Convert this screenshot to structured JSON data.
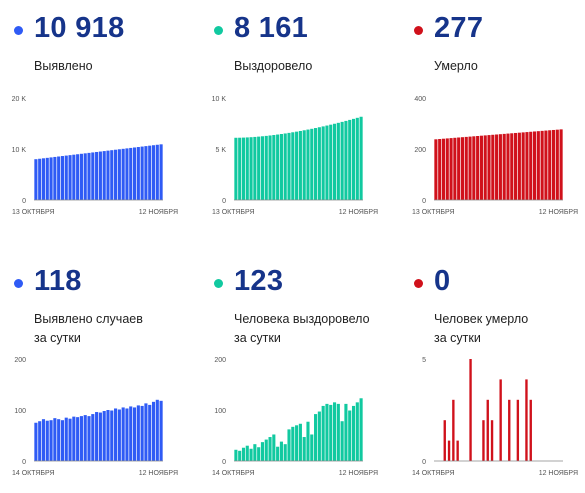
{
  "panels": [
    {
      "value": "10 918",
      "label": [
        "Выявлено"
      ],
      "color": "#2f5bf5",
      "chart": {
        "type": "bar",
        "yticks": [
          "0",
          "10 K",
          "20 K"
        ],
        "ymax": 20000,
        "start": 8000,
        "end": 10918,
        "mode": "trend"
      },
      "dates": [
        "13 ОКТЯБРЯ",
        "12 НОЯБРЯ"
      ]
    },
    {
      "value": "8 161",
      "label": [
        "Выздоровело"
      ],
      "color": "#11c9a0",
      "chart": {
        "type": "bar",
        "yticks": [
          "0",
          "5 K",
          "10 K"
        ],
        "ymax": 10000,
        "start": 6100,
        "end": 8161,
        "mode": "accel"
      },
      "dates": [
        "13 ОКТЯБРЯ",
        "12 НОЯБРЯ"
      ]
    },
    {
      "value": "277",
      "label": [
        "Умерло"
      ],
      "color": "#d0111b",
      "chart": {
        "type": "bar",
        "yticks": [
          "0",
          "200",
          "400"
        ],
        "ymax": 400,
        "start": 238,
        "end": 277,
        "mode": "trend"
      },
      "dates": [
        "13 ОКТЯБРЯ",
        "12 НОЯБРЯ"
      ]
    },
    {
      "value": "118",
      "label": [
        "Выявлено случаев",
        "за сутки"
      ],
      "color": "#2f5bf5",
      "chart": {
        "type": "bar",
        "yticks": [
          "0",
          "100",
          "200"
        ],
        "ymax": 200,
        "values": [
          75,
          78,
          82,
          79,
          80,
          84,
          82,
          80,
          85,
          83,
          87,
          86,
          88,
          90,
          88,
          92,
          96,
          95,
          98,
          100,
          99,
          103,
          101,
          105,
          103,
          107,
          105,
          109,
          108,
          113,
          110,
          116,
          120,
          118
        ]
      },
      "dates": [
        "14 ОКТЯБРЯ",
        "12 НОЯБРЯ"
      ]
    },
    {
      "value": "123",
      "label": [
        "Человека выздоровело",
        "за сутки"
      ],
      "color": "#11c9a0",
      "chart": {
        "type": "bar",
        "yticks": [
          "0",
          "100",
          "200"
        ],
        "ymax": 200,
        "values": [
          22,
          20,
          26,
          30,
          24,
          33,
          27,
          37,
          42,
          47,
          52,
          28,
          38,
          33,
          62,
          67,
          70,
          73,
          47,
          77,
          52,
          92,
          97,
          108,
          112,
          110,
          115,
          112,
          78,
          112,
          99,
          108,
          115,
          123
        ]
      },
      "dates": [
        "14 ОКТЯБРЯ",
        "12 НОЯБРЯ"
      ]
    },
    {
      "value": "0",
      "label": [
        "Человек умерло",
        "за сутки"
      ],
      "color": "#d0111b",
      "chart": {
        "type": "bar",
        "yticks": [
          "0",
          "5"
        ],
        "ymax": 5,
        "values": [
          0,
          0,
          2,
          1,
          3,
          1,
          0,
          0,
          5,
          0,
          0,
          2,
          3,
          2,
          0,
          4,
          0,
          3,
          0,
          3,
          0,
          4,
          3,
          0,
          0,
          0,
          0,
          0,
          0,
          0
        ]
      },
      "dates": [
        "14 ОКТЯБРЯ",
        "12 НОЯБРЯ"
      ]
    }
  ]
}
